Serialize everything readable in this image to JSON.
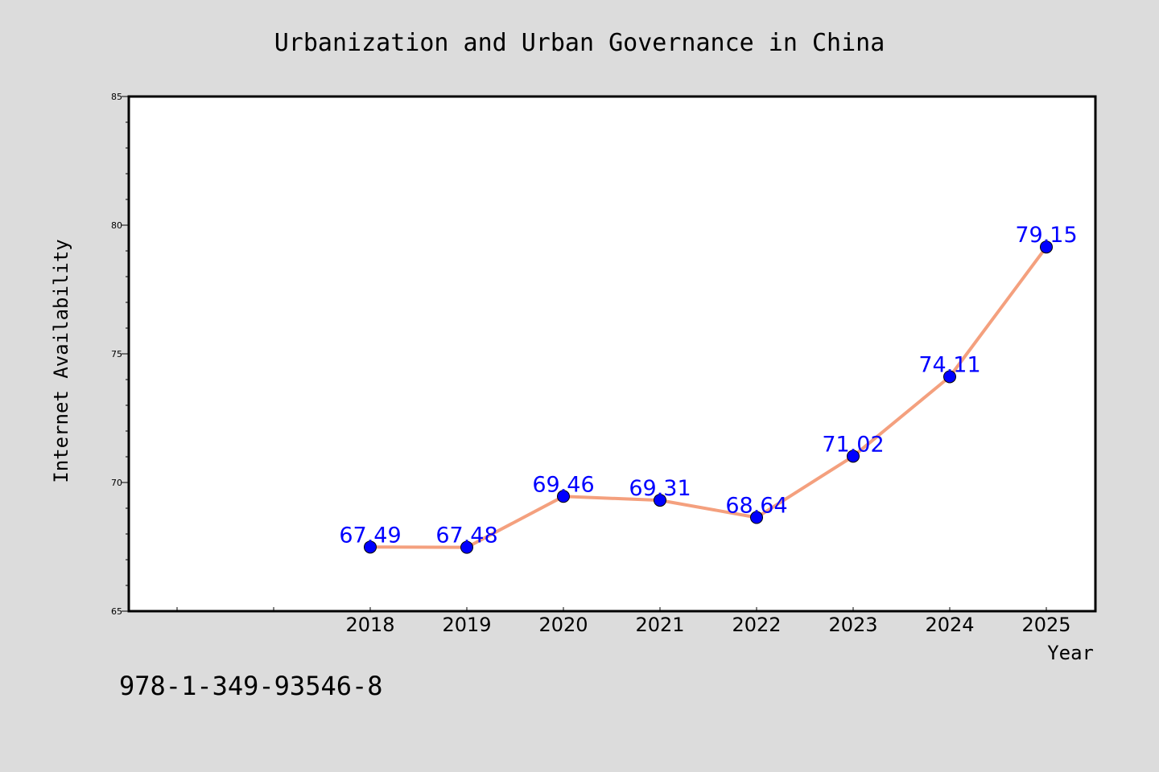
{
  "chart_data": {
    "type": "line",
    "title": "Urbanization and Urban Governance in China",
    "xlabel": "Year",
    "ylabel": "Internet Availability",
    "categories": [
      "2018",
      "2019",
      "2020",
      "2021",
      "2022",
      "2023",
      "2024",
      "2025"
    ],
    "series": [
      {
        "values": [
          67.49,
          67.48,
          69.46,
          69.31,
          68.64,
          71.02,
          74.11,
          79.15
        ],
        "data_labels": [
          "67.49",
          "67.48",
          "69.46",
          "69.31",
          "68.64",
          "71.02",
          "74.11",
          "79.15"
        ]
      }
    ],
    "ylim": [
      65,
      85
    ],
    "yticks": [
      "65",
      "70",
      "75",
      "80",
      "85"
    ],
    "grid": false,
    "legend": "none",
    "colors": {
      "line": "#f4a07e",
      "marker": "#0000ff",
      "data_label": "#0000ff",
      "background": "#dcdcdc",
      "plot_background": "#ffffff"
    }
  },
  "footer": {
    "isbn": "978-1-349-93546-8"
  }
}
